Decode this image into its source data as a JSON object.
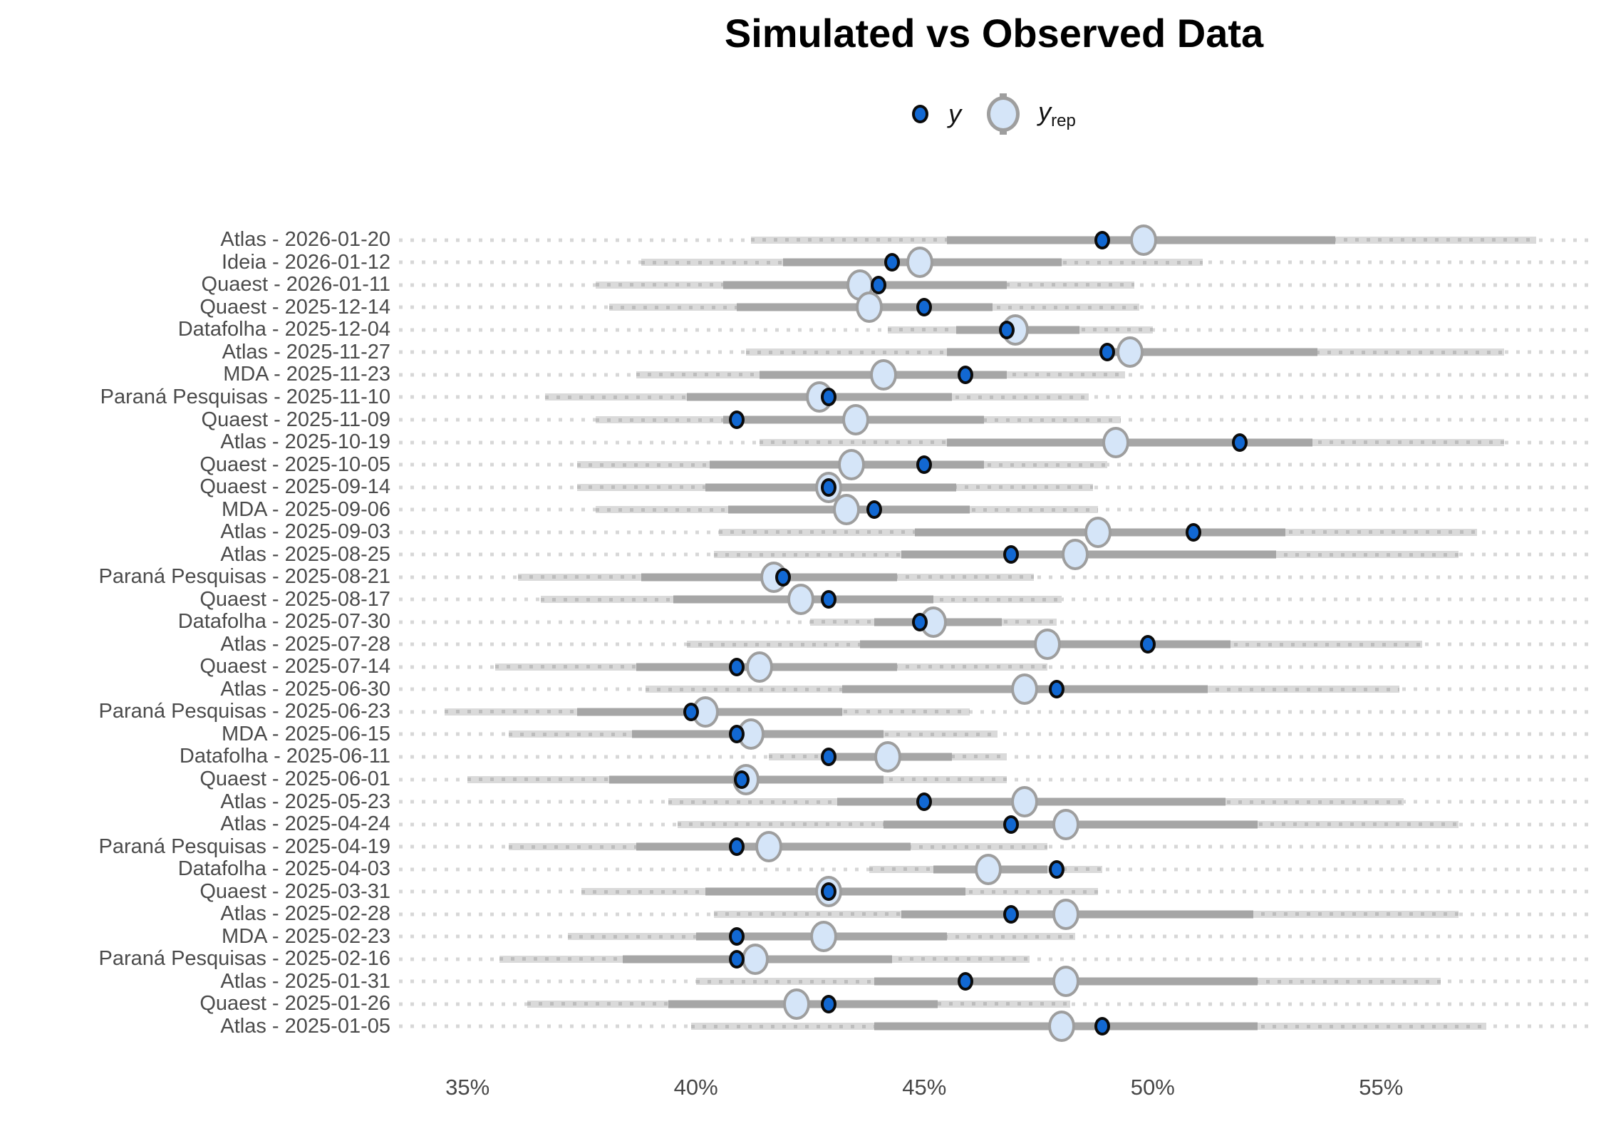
{
  "title": "Simulated vs Observed Data",
  "legend": {
    "y_label": "y",
    "yrep_label": "y",
    "yrep_sub": "rep"
  },
  "chart_data": {
    "type": "interval",
    "title": "Simulated vs Observed Data",
    "x_unit": "percent",
    "xlim": [
      33.5,
      59.55
    ],
    "x_ticks": [
      {
        "value": 35,
        "label": "35%"
      },
      {
        "value": 40,
        "label": "40%"
      },
      {
        "value": 45,
        "label": "45%"
      },
      {
        "value": 50,
        "label": "50%"
      },
      {
        "value": 55,
        "label": "55%"
      }
    ],
    "legend_entries": [
      "y",
      "y_rep"
    ],
    "legend_position": "top",
    "grid": "dotted-row-lines",
    "colors": {
      "title_color": "#000000",
      "label_color": "#4b4b4b",
      "tick_color": "#474747",
      "bg_dots": "#d7d7d7",
      "outer_band": "#dadada",
      "band_dots": "#bdbdbd",
      "inner_band": "#a6a6a6",
      "yrep_fill": "#d5e5f8",
      "yrep_stroke": "#9e9e9e",
      "y_fill": "#1268d2",
      "y_stroke": "#0b0b0b"
    },
    "rows": [
      {
        "label": "Atlas - 2026-01-20",
        "outer": [
          41.2,
          58.4
        ],
        "inner": [
          45.5,
          54.0
        ],
        "y_rep": 49.8,
        "y": 48.9
      },
      {
        "label": "Ideia - 2026-01-12",
        "outer": [
          38.8,
          51.1
        ],
        "inner": [
          41.9,
          48.0
        ],
        "y_rep": 44.9,
        "y": 44.3
      },
      {
        "label": "Quaest - 2026-01-11",
        "outer": [
          37.8,
          49.6
        ],
        "inner": [
          40.6,
          46.8
        ],
        "y_rep": 43.6,
        "y": 44.0
      },
      {
        "label": "Quaest - 2025-12-14",
        "outer": [
          38.1,
          49.7
        ],
        "inner": [
          40.9,
          46.5
        ],
        "y_rep": 43.8,
        "y": 45.0
      },
      {
        "label": "Datafolha - 2025-12-04",
        "outer": [
          44.2,
          50.0
        ],
        "inner": [
          45.7,
          48.4
        ],
        "y_rep": 47.0,
        "y": 46.8
      },
      {
        "label": "Atlas - 2025-11-27",
        "outer": [
          41.1,
          57.7
        ],
        "inner": [
          45.5,
          53.6
        ],
        "y_rep": 49.5,
        "y": 49.0
      },
      {
        "label": "MDA - 2025-11-23",
        "outer": [
          38.7,
          49.4
        ],
        "inner": [
          41.4,
          46.8
        ],
        "y_rep": 44.1,
        "y": 45.9
      },
      {
        "label": "Paraná Pesquisas - 2025-11-10",
        "outer": [
          36.7,
          48.6
        ],
        "inner": [
          39.8,
          45.6
        ],
        "y_rep": 42.7,
        "y": 42.9
      },
      {
        "label": "Quaest - 2025-11-09",
        "outer": [
          37.8,
          49.3
        ],
        "inner": [
          40.6,
          46.3
        ],
        "y_rep": 43.5,
        "y": 40.9
      },
      {
        "label": "Atlas - 2025-10-19",
        "outer": [
          41.4,
          57.7
        ],
        "inner": [
          45.5,
          53.5
        ],
        "y_rep": 49.2,
        "y": 51.9
      },
      {
        "label": "Quaest - 2025-10-05",
        "outer": [
          37.4,
          49.0
        ],
        "inner": [
          40.3,
          46.3
        ],
        "y_rep": 43.4,
        "y": 45.0
      },
      {
        "label": "Quaest - 2025-09-14",
        "outer": [
          37.4,
          48.7
        ],
        "inner": [
          40.2,
          45.7
        ],
        "y_rep": 42.9,
        "y": 42.9
      },
      {
        "label": "MDA - 2025-09-06",
        "outer": [
          37.8,
          48.8
        ],
        "inner": [
          40.7,
          46.0
        ],
        "y_rep": 43.3,
        "y": 43.9
      },
      {
        "label": "Atlas - 2025-09-03",
        "outer": [
          40.5,
          57.1
        ],
        "inner": [
          44.8,
          52.9
        ],
        "y_rep": 48.8,
        "y": 50.9
      },
      {
        "label": "Atlas - 2025-08-25",
        "outer": [
          40.4,
          56.7
        ],
        "inner": [
          44.5,
          52.7
        ],
        "y_rep": 48.3,
        "y": 46.9
      },
      {
        "label": "Paraná Pesquisas - 2025-08-21",
        "outer": [
          36.1,
          47.4
        ],
        "inner": [
          38.8,
          44.4
        ],
        "y_rep": 41.7,
        "y": 41.9
      },
      {
        "label": "Quaest - 2025-08-17",
        "outer": [
          36.6,
          48.0
        ],
        "inner": [
          39.5,
          45.2
        ],
        "y_rep": 42.3,
        "y": 42.9
      },
      {
        "label": "Datafolha - 2025-07-30",
        "outer": [
          42.5,
          47.9
        ],
        "inner": [
          43.9,
          46.7
        ],
        "y_rep": 45.2,
        "y": 44.9
      },
      {
        "label": "Atlas - 2025-07-28",
        "outer": [
          39.8,
          55.9
        ],
        "inner": [
          43.6,
          51.7
        ],
        "y_rep": 47.7,
        "y": 49.9
      },
      {
        "label": "Quaest - 2025-07-14",
        "outer": [
          35.6,
          47.7
        ],
        "inner": [
          38.7,
          44.4
        ],
        "y_rep": 41.4,
        "y": 40.9
      },
      {
        "label": "Atlas - 2025-06-30",
        "outer": [
          38.9,
          55.4
        ],
        "inner": [
          43.2,
          51.2
        ],
        "y_rep": 47.2,
        "y": 47.9
      },
      {
        "label": "Paraná Pesquisas - 2025-06-23",
        "outer": [
          34.5,
          46.0
        ],
        "inner": [
          37.4,
          43.2
        ],
        "y_rep": 40.2,
        "y": 39.9
      },
      {
        "label": "MDA - 2025-06-15",
        "outer": [
          35.9,
          46.6
        ],
        "inner": [
          38.6,
          44.1
        ],
        "y_rep": 41.2,
        "y": 40.9
      },
      {
        "label": "Datafolha - 2025-06-11",
        "outer": [
          41.6,
          46.8
        ],
        "inner": [
          42.9,
          45.6
        ],
        "y_rep": 44.2,
        "y": 42.9
      },
      {
        "label": "Quaest - 2025-06-01",
        "outer": [
          35.0,
          46.8
        ],
        "inner": [
          38.1,
          44.1
        ],
        "y_rep": 41.1,
        "y": 41.0
      },
      {
        "label": "Atlas - 2025-05-23",
        "outer": [
          39.4,
          55.5
        ],
        "inner": [
          43.1,
          51.6
        ],
        "y_rep": 47.2,
        "y": 45.0
      },
      {
        "label": "Atlas - 2025-04-24",
        "outer": [
          39.6,
          56.7
        ],
        "inner": [
          44.1,
          52.3
        ],
        "y_rep": 48.1,
        "y": 46.9
      },
      {
        "label": "Paraná Pesquisas - 2025-04-19",
        "outer": [
          35.9,
          47.7
        ],
        "inner": [
          38.7,
          44.7
        ],
        "y_rep": 41.6,
        "y": 40.9
      },
      {
        "label": "Datafolha - 2025-04-03",
        "outer": [
          43.8,
          48.9
        ],
        "inner": [
          45.2,
          47.7
        ],
        "y_rep": 46.4,
        "y": 47.9
      },
      {
        "label": "Quaest - 2025-03-31",
        "outer": [
          37.5,
          48.8
        ],
        "inner": [
          40.2,
          45.9
        ],
        "y_rep": 42.9,
        "y": 42.9
      },
      {
        "label": "Atlas - 2025-02-28",
        "outer": [
          40.4,
          56.7
        ],
        "inner": [
          44.5,
          52.2
        ],
        "y_rep": 48.1,
        "y": 46.9
      },
      {
        "label": "MDA - 2025-02-23",
        "outer": [
          37.2,
          48.3
        ],
        "inner": [
          40.0,
          45.5
        ],
        "y_rep": 42.8,
        "y": 40.9
      },
      {
        "label": "Paraná Pesquisas - 2025-02-16",
        "outer": [
          35.7,
          47.3
        ],
        "inner": [
          38.4,
          44.3
        ],
        "y_rep": 41.3,
        "y": 40.9
      },
      {
        "label": "Atlas - 2025-01-31",
        "outer": [
          40.0,
          56.3
        ],
        "inner": [
          43.9,
          52.3
        ],
        "y_rep": 48.1,
        "y": 45.9
      },
      {
        "label": "Quaest - 2025-01-26",
        "outer": [
          36.3,
          48.2
        ],
        "inner": [
          39.4,
          45.3
        ],
        "y_rep": 42.2,
        "y": 42.9
      },
      {
        "label": "Atlas - 2025-01-05",
        "outer": [
          39.9,
          57.3
        ],
        "inner": [
          43.9,
          52.3
        ],
        "y_rep": 48.0,
        "y": 48.9
      }
    ]
  }
}
